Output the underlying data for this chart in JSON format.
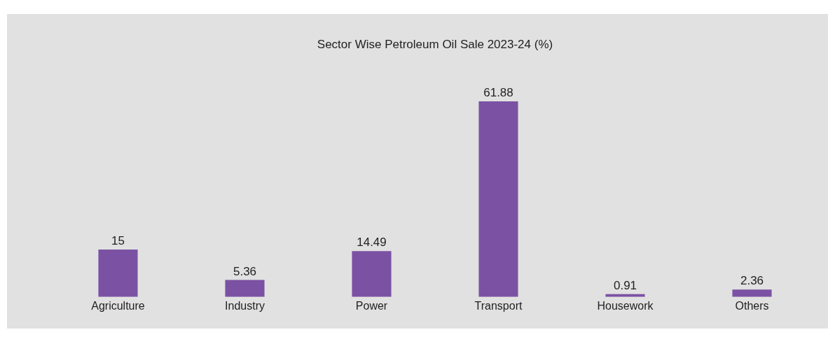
{
  "chart_data": {
    "type": "bar",
    "title": "Sector Wise Petroleum Oil Sale 2023-24 (%)",
    "categories": [
      "Agriculture",
      "Industry",
      "Power",
      "Transport",
      "Housework",
      "Others"
    ],
    "values": [
      15,
      5.36,
      14.49,
      61.88,
      0.91,
      2.36
    ],
    "color": "#7b52a3",
    "data_labels": true,
    "grid": false,
    "legend": false
  }
}
